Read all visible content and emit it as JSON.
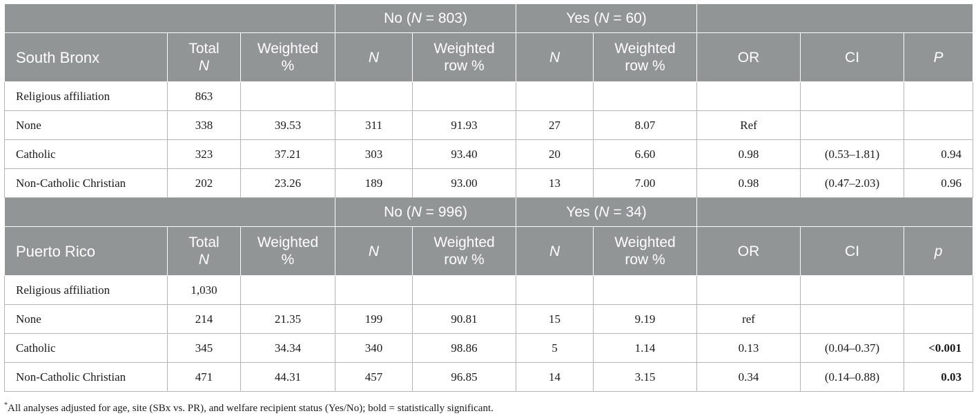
{
  "header": {
    "col_total": "Total",
    "col_n": "N",
    "col_weighted": "Weighted",
    "col_pct": "%",
    "col_weighted_row": "Weighted",
    "col_row_pct": "row %",
    "col_or": "OR",
    "col_ci": "CI"
  },
  "sections": [
    {
      "site": "South Bronx",
      "no_group": {
        "label": "No (",
        "n": "N",
        "value": " = 803)"
      },
      "yes_group": {
        "label": "Yes (",
        "n": "N",
        "value": " = 60)"
      },
      "p_label": "P",
      "rows": [
        {
          "label": "Religious affiliation",
          "total": "863",
          "wpct": "",
          "no_n": "",
          "no_row": "",
          "yes_n": "",
          "yes_row": "",
          "or": "",
          "ci": "",
          "p": ""
        },
        {
          "label": "None",
          "total": "338",
          "wpct": "39.53",
          "no_n": "311",
          "no_row": "91.93",
          "yes_n": "27",
          "yes_row": "8.07",
          "or": "Ref",
          "ci": "",
          "p": ""
        },
        {
          "label": "Catholic",
          "total": "323",
          "wpct": "37.21",
          "no_n": "303",
          "no_row": "93.40",
          "yes_n": "20",
          "yes_row": "6.60",
          "or": "0.98",
          "ci": "(0.53–1.81)",
          "p": "0.94"
        },
        {
          "label": "Non-Catholic Christian",
          "total": "202",
          "wpct": "23.26",
          "no_n": "189",
          "no_row": "93.00",
          "yes_n": "13",
          "yes_row": "7.00",
          "or": "0.98",
          "ci": "(0.47–2.03)",
          "p": "0.96"
        }
      ]
    },
    {
      "site": "Puerto Rico",
      "no_group": {
        "label": "No (",
        "n": "N",
        "value": " = 996)"
      },
      "yes_group": {
        "label": "Yes (",
        "n": "N",
        "value": " = 34)"
      },
      "p_label": "p",
      "rows": [
        {
          "label": "Religious affiliation",
          "total": "1,030",
          "wpct": "",
          "no_n": "",
          "no_row": "",
          "yes_n": "",
          "yes_row": "",
          "or": "",
          "ci": "",
          "p": ""
        },
        {
          "label": "None",
          "total": "214",
          "wpct": "21.35",
          "no_n": "199",
          "no_row": "90.81",
          "yes_n": "15",
          "yes_row": "9.19",
          "or": "ref",
          "ci": "",
          "p": ""
        },
        {
          "label": "Catholic",
          "total": "345",
          "wpct": "34.34",
          "no_n": "340",
          "no_row": "98.86",
          "yes_n": "5",
          "yes_row": "1.14",
          "or": "0.13",
          "ci": "(0.04–0.37)",
          "p": "<0.001"
        },
        {
          "label": "Non-Catholic Christian",
          "total": "471",
          "wpct": "44.31",
          "no_n": "457",
          "no_row": "96.85",
          "yes_n": "14",
          "yes_row": "3.15",
          "or": "0.34",
          "ci": "(0.14–0.88)",
          "p": "0.03"
        }
      ]
    }
  ],
  "footnote": {
    "marker": "*",
    "text": "All analyses adjusted for age, site (SBx vs. PR), and welfare recipient status (Yes/No); bold = statistically significant."
  }
}
